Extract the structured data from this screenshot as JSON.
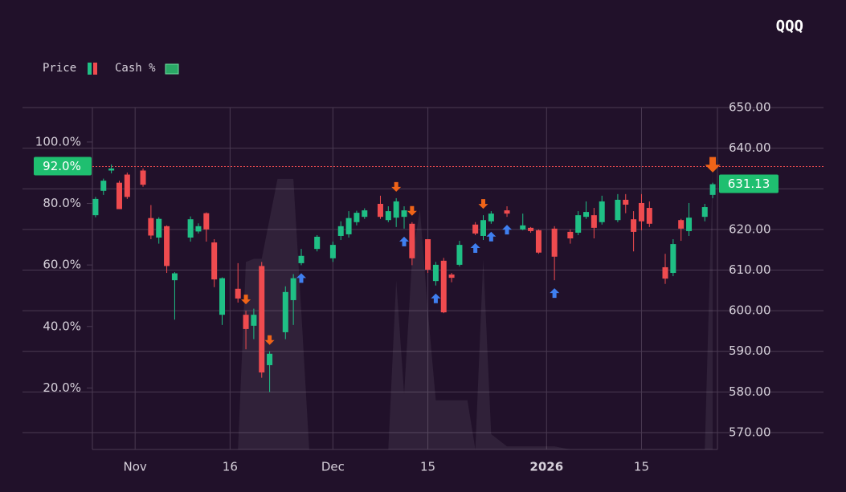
{
  "chart_data": {
    "type": "candlestick",
    "title": "QQQ",
    "legend": "top-left",
    "grid": true,
    "up_color": "#1fbf85",
    "down_color": "#ef4b4f",
    "x": [
      0,
      1,
      2,
      3,
      4,
      6,
      7,
      8,
      9,
      10,
      12,
      13,
      14,
      15,
      16,
      18,
      19,
      20,
      21,
      22,
      24,
      25,
      26,
      28,
      30,
      31,
      32,
      33,
      34,
      36,
      37,
      38,
      39,
      40,
      42,
      43,
      44,
      45,
      46,
      48,
      49,
      50,
      52,
      54,
      55,
      56,
      58,
      60,
      61,
      62,
      63,
      64,
      66,
      67,
      68,
      69,
      70,
      72,
      73,
      74,
      75,
      77,
      78
    ],
    "open": [
      623.5,
      629.5,
      634.5,
      631.5,
      633.5,
      634.5,
      622.8,
      618,
      620.8,
      607.5,
      618,
      619.5,
      624,
      616.8,
      599,
      605.4,
      599,
      596.3,
      611,
      586.6,
      594.7,
      602.6,
      611.7,
      615.2,
      612.9,
      618.4,
      618.8,
      621.8,
      623.1,
      626.3,
      622.3,
      622.9,
      623.1,
      621.4,
      617.6,
      607.3,
      612.3,
      608.9,
      611.3,
      621.2,
      618.4,
      622,
      624.7,
      620,
      620.4,
      619.8,
      620.2,
      619.4,
      619.2,
      623.1,
      623.5,
      621.8,
      622.3,
      627.3,
      622.5,
      626.5,
      625.3,
      610.7,
      609.3,
      622.3,
      619.6,
      623.1,
      628.5
    ],
    "high": [
      628,
      632.5,
      636,
      632,
      634,
      635,
      626,
      623,
      621,
      609.5,
      623.2,
      621.5,
      624.2,
      617.6,
      608.2,
      611.7,
      600,
      600.5,
      612,
      590,
      606,
      609,
      615.2,
      618.6,
      617,
      622,
      624.5,
      624.6,
      625.2,
      628.3,
      625.7,
      627.7,
      625.7,
      621.8,
      617.6,
      612,
      613,
      609.3,
      617.2,
      621.8,
      623.5,
      624.5,
      625.7,
      623.9,
      620.6,
      620,
      620.8,
      620,
      624.5,
      626.9,
      625.3,
      628.3,
      628.7,
      628.7,
      624.5,
      628.7,
      626.9,
      614,
      617.6,
      622.6,
      626.5,
      626.3,
      631.5
    ],
    "low": [
      623,
      628.5,
      633.8,
      625,
      627.5,
      630.5,
      617.6,
      616.5,
      609.3,
      597.8,
      617,
      619,
      617,
      605.8,
      596.5,
      602,
      590.5,
      593,
      583.5,
      580,
      593,
      596.5,
      611.2,
      614.6,
      612,
      617.4,
      618,
      621,
      622.6,
      622.6,
      621.8,
      620.6,
      620.2,
      611.2,
      609.3,
      606.2,
      599.4,
      607,
      610.9,
      618.6,
      617.4,
      621.4,
      623.1,
      619.8,
      619.2,
      614,
      607.5,
      616.5,
      618.6,
      622.6,
      617.8,
      621.2,
      621.8,
      624,
      614.6,
      619.8,
      620.6,
      606.6,
      608.5,
      617.2,
      618.4,
      622,
      627.7
    ],
    "close": [
      627.5,
      632,
      635,
      625,
      628,
      631,
      618.5,
      622.6,
      611,
      609.2,
      622.5,
      620.8,
      620,
      607.7,
      608,
      603,
      595.5,
      599,
      584.8,
      589.4,
      604.6,
      608,
      613.5,
      618.2,
      616.2,
      620.8,
      622.8,
      624.1,
      624.7,
      623.1,
      624.5,
      626.9,
      624.7,
      612.9,
      610.1,
      611.3,
      599.6,
      608.1,
      616.2,
      619,
      622.3,
      623.9,
      623.9,
      621,
      619.6,
      614.3,
      613.3,
      617.8,
      623.5,
      624.3,
      620.4,
      626.9,
      627.3,
      626.1,
      619.4,
      622,
      621.4,
      607.9,
      616.4,
      620.2,
      622.9,
      625.5,
      631.13
    ],
    "last_close_label": "631.13",
    "series": [
      {
        "name": "Price"
      },
      {
        "name": "Cash %",
        "color": "#2aa866",
        "axis": "y2",
        "x": [
          0,
          1,
          2,
          3,
          4,
          5,
          6,
          7,
          8,
          9,
          10,
          11,
          12,
          13,
          14,
          15,
          16,
          17,
          18,
          19,
          20,
          21,
          22,
          23,
          24,
          25,
          26,
          27,
          28,
          29,
          30,
          31,
          32,
          33,
          34,
          35,
          36,
          37,
          38,
          39,
          40,
          41,
          42,
          43,
          44,
          45,
          46,
          47,
          48,
          49,
          50,
          51,
          52,
          53,
          54,
          55,
          56,
          57,
          58,
          59,
          60,
          61,
          62,
          63,
          64,
          65,
          66,
          67,
          68,
          69,
          70,
          71,
          72,
          73,
          74,
          75,
          76,
          77,
          78
        ],
        "values": [
          0,
          0,
          0,
          0,
          0,
          0,
          0,
          0,
          0,
          0,
          0,
          0,
          0,
          0,
          0,
          0,
          0,
          0,
          0,
          61,
          62,
          62,
          75,
          88,
          88,
          88,
          45,
          0,
          0,
          0,
          0,
          0,
          0,
          0,
          0,
          0,
          0,
          0,
          55,
          18,
          62,
          78,
          45,
          16,
          16,
          16,
          16,
          16,
          0,
          62,
          5,
          3,
          1,
          1,
          1,
          1,
          1,
          1,
          1,
          0.5,
          0,
          0,
          0,
          0,
          0,
          0,
          0,
          0,
          0,
          0,
          0,
          0,
          0,
          0,
          0,
          0,
          0,
          0,
          92
        ],
        "current": {
          "value": 92,
          "label": "92.0%"
        }
      }
    ],
    "signals": {
      "buy": [
        26,
        39,
        43,
        48,
        50,
        52,
        58
      ],
      "sell": [
        19,
        22,
        38,
        40,
        49,
        78
      ]
    },
    "xlim": [
      -0.4,
      78.6
    ],
    "xticks": [
      {
        "value": 5,
        "label": "Nov"
      },
      {
        "value": 17,
        "label": "16"
      },
      {
        "value": 30,
        "label": "Dec"
      },
      {
        "value": 42,
        "label": "15"
      },
      {
        "value": 57,
        "label": "2026"
      },
      {
        "value": 69,
        "label": "15"
      }
    ],
    "ylim": [
      565.85,
      650
    ],
    "yticks": [
      {
        "value": 570,
        "label": "570.00"
      },
      {
        "value": 580,
        "label": "580.00"
      },
      {
        "value": 590,
        "label": "590.00"
      },
      {
        "value": 600,
        "label": "600.00"
      },
      {
        "value": 610,
        "label": "610.00"
      },
      {
        "value": 620,
        "label": "620.00"
      },
      {
        "value": 630,
        "label": "630.00"
      },
      {
        "value": 640,
        "label": "640.00"
      },
      {
        "value": 650,
        "label": "650.00"
      }
    ],
    "y2lim": [
      0,
      111.2
    ],
    "y2ticks": [
      {
        "value": 20,
        "label": "20.0%"
      },
      {
        "value": 40,
        "label": "40.0%"
      },
      {
        "value": 60,
        "label": "60.0%"
      },
      {
        "value": 80,
        "label": "80.0%"
      },
      {
        "value": 100,
        "label": "100.0%"
      }
    ]
  }
}
